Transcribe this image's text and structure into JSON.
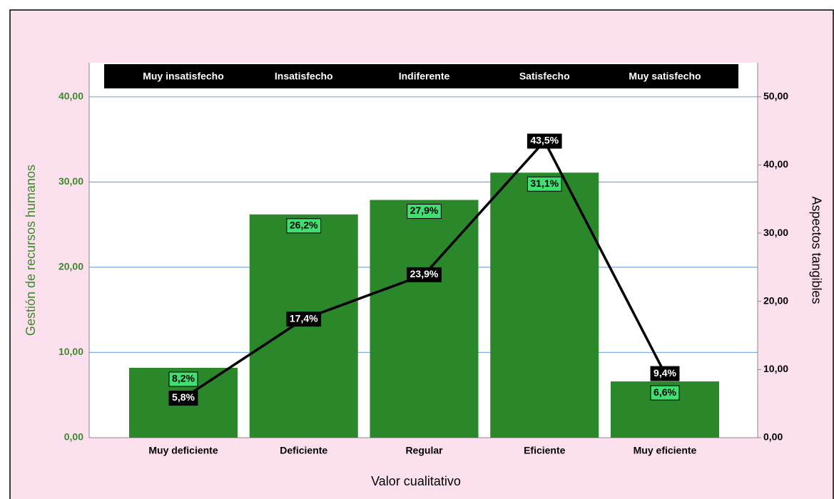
{
  "chart_data": {
    "type": "bar_line",
    "categories": [
      "Muy deficiente",
      "Deficiente",
      "Regular",
      "Eficiente",
      "Muy eficiente"
    ],
    "top_categories": [
      "Muy insatisfecho",
      "Insatisfecho",
      "Indiferente",
      "Satisfecho",
      "Muy satisfecho"
    ],
    "x_label": "Valor cualitativo",
    "y_label": "Gestión de recursos humanos",
    "y2_label": "Aspectos tangibles",
    "series": [
      {
        "name": "Gestión de recursos humanos",
        "type": "bar",
        "color": "#2a872a",
        "label_color": "#3fe070",
        "values": [
          8.2,
          26.2,
          27.9,
          31.1,
          6.6
        ],
        "value_labels": [
          "8,2%",
          "26,2%",
          "27,9%",
          "31,1%",
          "6,6%"
        ]
      },
      {
        "name": "Aspectos tangibles",
        "type": "line",
        "axis": "y2",
        "color": "#000000",
        "values": [
          5.8,
          17.4,
          23.9,
          43.5,
          9.4
        ],
        "value_labels": [
          "5,8%",
          "17,4%",
          "23,9%",
          "43,5%",
          "9,4%"
        ]
      }
    ],
    "ylim": [
      0,
      44
    ],
    "yticks": [
      {
        "value": 0,
        "label": "0,00"
      },
      {
        "value": 10,
        "label": "10,00"
      },
      {
        "value": 20,
        "label": "20,00"
      },
      {
        "value": 30,
        "label": "30,00"
      },
      {
        "value": 40,
        "label": "40,00"
      }
    ],
    "y2lim": [
      0,
      55
    ],
    "y2ticks": [
      {
        "value": 0,
        "label": "0,00"
      },
      {
        "value": 10,
        "label": "10,00"
      },
      {
        "value": 20,
        "label": "20,00"
      },
      {
        "value": 30,
        "label": "30,00"
      },
      {
        "value": 40,
        "label": "40,00"
      },
      {
        "value": 50,
        "label": "50,00"
      }
    ],
    "grid": true
  }
}
